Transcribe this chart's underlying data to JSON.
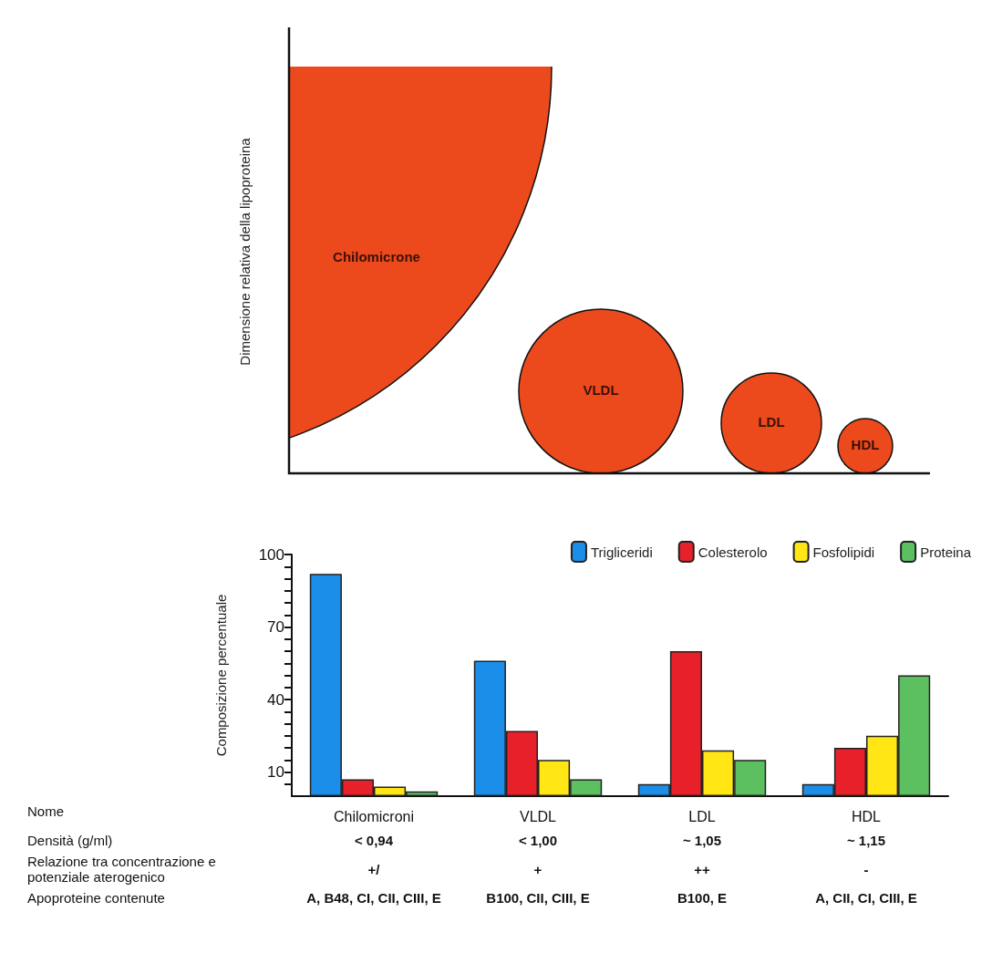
{
  "chart_data": [
    {
      "type": "other",
      "ylabel": "Dimensione relativa della lipoproteina",
      "annotations": [
        "Chilomicrone",
        "VLDL",
        "LDL",
        "HDL"
      ]
    },
    {
      "type": "bar",
      "ylabel": "Composizione percentuale",
      "categories": [
        "Chilomicroni",
        "VLDL",
        "LDL",
        "HDL"
      ],
      "series": [
        {
          "name": "Trigliceridi",
          "color": "#1a8ee8",
          "values": [
            92,
            56,
            5,
            5
          ]
        },
        {
          "name": "Colesterolo",
          "color": "#e8202a",
          "values": [
            7,
            27,
            60,
            20
          ]
        },
        {
          "name": "Fosfolipidi",
          "color": "#ffe614",
          "values": [
            4,
            15,
            19,
            25
          ]
        },
        {
          "name": "Proteina",
          "color": "#5cc060",
          "values": [
            2,
            7,
            15,
            50
          ]
        }
      ],
      "ylim": [
        0,
        100
      ],
      "yticks": [
        {
          "value": 5,
          "label": null
        },
        10,
        {
          "value": 15,
          "label": null
        },
        {
          "value": 20,
          "label": null
        },
        {
          "value": 25,
          "label": null
        },
        {
          "value": 30,
          "label": null
        },
        {
          "value": 35,
          "label": null
        },
        40,
        {
          "value": 45,
          "label": null
        },
        {
          "value": 50,
          "label": null
        },
        {
          "value": 55,
          "label": null
        },
        {
          "value": 60,
          "label": null
        },
        {
          "value": 65,
          "label": null
        },
        70,
        {
          "value": 75,
          "label": null
        },
        {
          "value": 80,
          "label": null
        },
        {
          "value": 85,
          "label": null
        },
        {
          "value": 90,
          "label": null
        },
        {
          "value": 95,
          "label": null
        },
        100
      ],
      "legend": "top right",
      "annotations": [
        "Nome",
        "Densità (g/ml)",
        "< 0,94",
        "< 1,00",
        "~ 1,05",
        "~ 1,15",
        "Relazione tra concentrazione e potenziale aterogenico",
        "+/",
        "+",
        "++",
        "-",
        "Apoproteine contenute",
        "A, B48, CI, CII, CIII, E",
        "B100, CII, CIII, E",
        "B100, E",
        "A, CII, CI, CIII, E"
      ]
    }
  ]
}
